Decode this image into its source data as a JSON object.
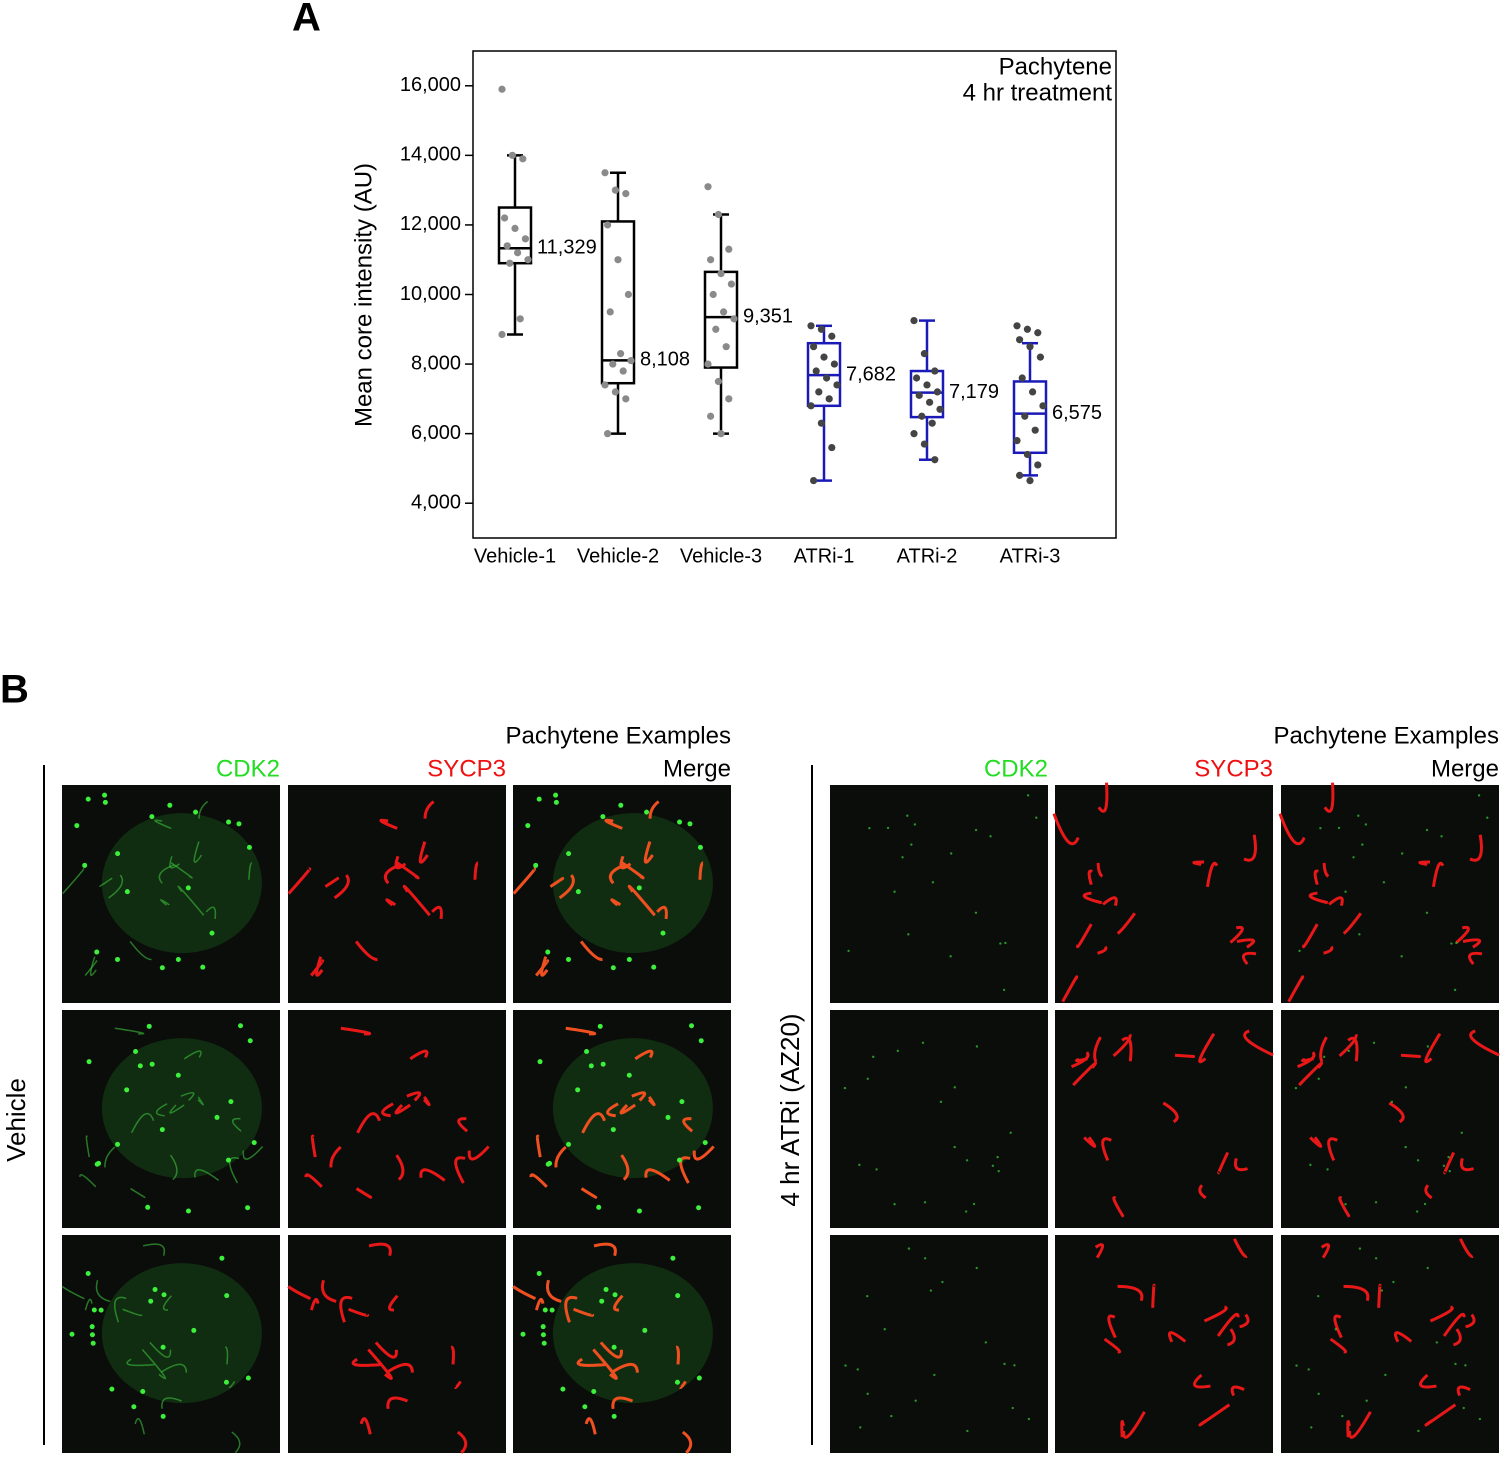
{
  "panel_a_label": "A",
  "chart_data": {
    "type": "box",
    "y_label": "Mean core intensity (AU)",
    "annotation": [
      "Pachytene",
      "4 hr treatment"
    ],
    "ylim": [
      3000,
      17000
    ],
    "yticks": [
      {
        "value": 4000,
        "label": "4,000"
      },
      {
        "value": 6000,
        "label": "6,000"
      },
      {
        "value": 8000,
        "label": "8,000"
      },
      {
        "value": 10000,
        "label": "10,000"
      },
      {
        "value": 12000,
        "label": "12,000"
      },
      {
        "value": 14000,
        "label": "14,000"
      },
      {
        "value": 16000,
        "label": "16,000"
      }
    ],
    "boxes": [
      {
        "name": "Vehicle-1",
        "color": "#000000",
        "point_color": "#8a8a8a",
        "whisker_low": 8850,
        "q1": 10900,
        "median": 11329,
        "median_label": "11,329",
        "q3": 12500,
        "whisker_high": 14000,
        "points": [
          15900,
          14000,
          13900,
          12200,
          11900,
          11600,
          11400,
          11200,
          11000,
          10900,
          9300,
          8850
        ]
      },
      {
        "name": "Vehicle-2",
        "color": "#000000",
        "point_color": "#8a8a8a",
        "whisker_low": 6000,
        "q1": 7450,
        "median": 8108,
        "median_label": "8,108",
        "q3": 12100,
        "whisker_high": 13500,
        "points": [
          13500,
          13000,
          12900,
          12000,
          11000,
          10000,
          9500,
          8300,
          8100,
          8000,
          7800,
          7400,
          7200,
          7000,
          6000
        ]
      },
      {
        "name": "Vehicle-3",
        "color": "#000000",
        "point_color": "#8a8a8a",
        "whisker_low": 6000,
        "q1": 7900,
        "median": 9351,
        "median_label": "9,351",
        "q3": 10650,
        "whisker_high": 12300,
        "points": [
          13100,
          12300,
          11300,
          11000,
          10600,
          10300,
          10000,
          9500,
          9300,
          9000,
          8500,
          8000,
          7500,
          7000,
          6500,
          6000
        ]
      },
      {
        "name": "ATRi-1",
        "color": "#1a1ab8",
        "point_color": "#444444",
        "whisker_low": 4650,
        "q1": 6800,
        "median": 7682,
        "median_label": "7,682",
        "q3": 8600,
        "whisker_high": 9100,
        "points": [
          9100,
          9000,
          8800,
          8500,
          8200,
          8000,
          7800,
          7600,
          7400,
          7200,
          7000,
          6800,
          6300,
          5600,
          4650
        ]
      },
      {
        "name": "ATRi-2",
        "color": "#1a1ab8",
        "point_color": "#444444",
        "whisker_low": 5250,
        "q1": 6475,
        "median": 7179,
        "median_label": "7,179",
        "q3": 7800,
        "whisker_high": 9250,
        "points": [
          9250,
          8300,
          7800,
          7600,
          7400,
          7200,
          7100,
          6900,
          6700,
          6500,
          6300,
          6000,
          5700,
          5250
        ]
      },
      {
        "name": "ATRi-3",
        "color": "#1a1ab8",
        "point_color": "#444444",
        "whisker_low": 4800,
        "q1": 5450,
        "median": 6575,
        "median_label": "6,575",
        "q3": 7500,
        "whisker_high": 8600,
        "points": [
          9100,
          9000,
          8900,
          8700,
          8500,
          8200,
          7600,
          7200,
          6800,
          6500,
          6100,
          5800,
          5400,
          5100,
          4800,
          4650
        ]
      }
    ]
  },
  "panel_b": {
    "label": "B",
    "groups": [
      {
        "header": "Pachytene Examples",
        "row_label": "Vehicle",
        "channels": [
          "CDK2",
          "SYCP3",
          "Merge"
        ],
        "cdk2_signal": true
      },
      {
        "header": "Pachytene Examples",
        "row_label": "4 hr ATRi (AZ20)",
        "channels": [
          "CDK2",
          "SYCP3",
          "Merge"
        ],
        "cdk2_signal": false
      }
    ]
  }
}
